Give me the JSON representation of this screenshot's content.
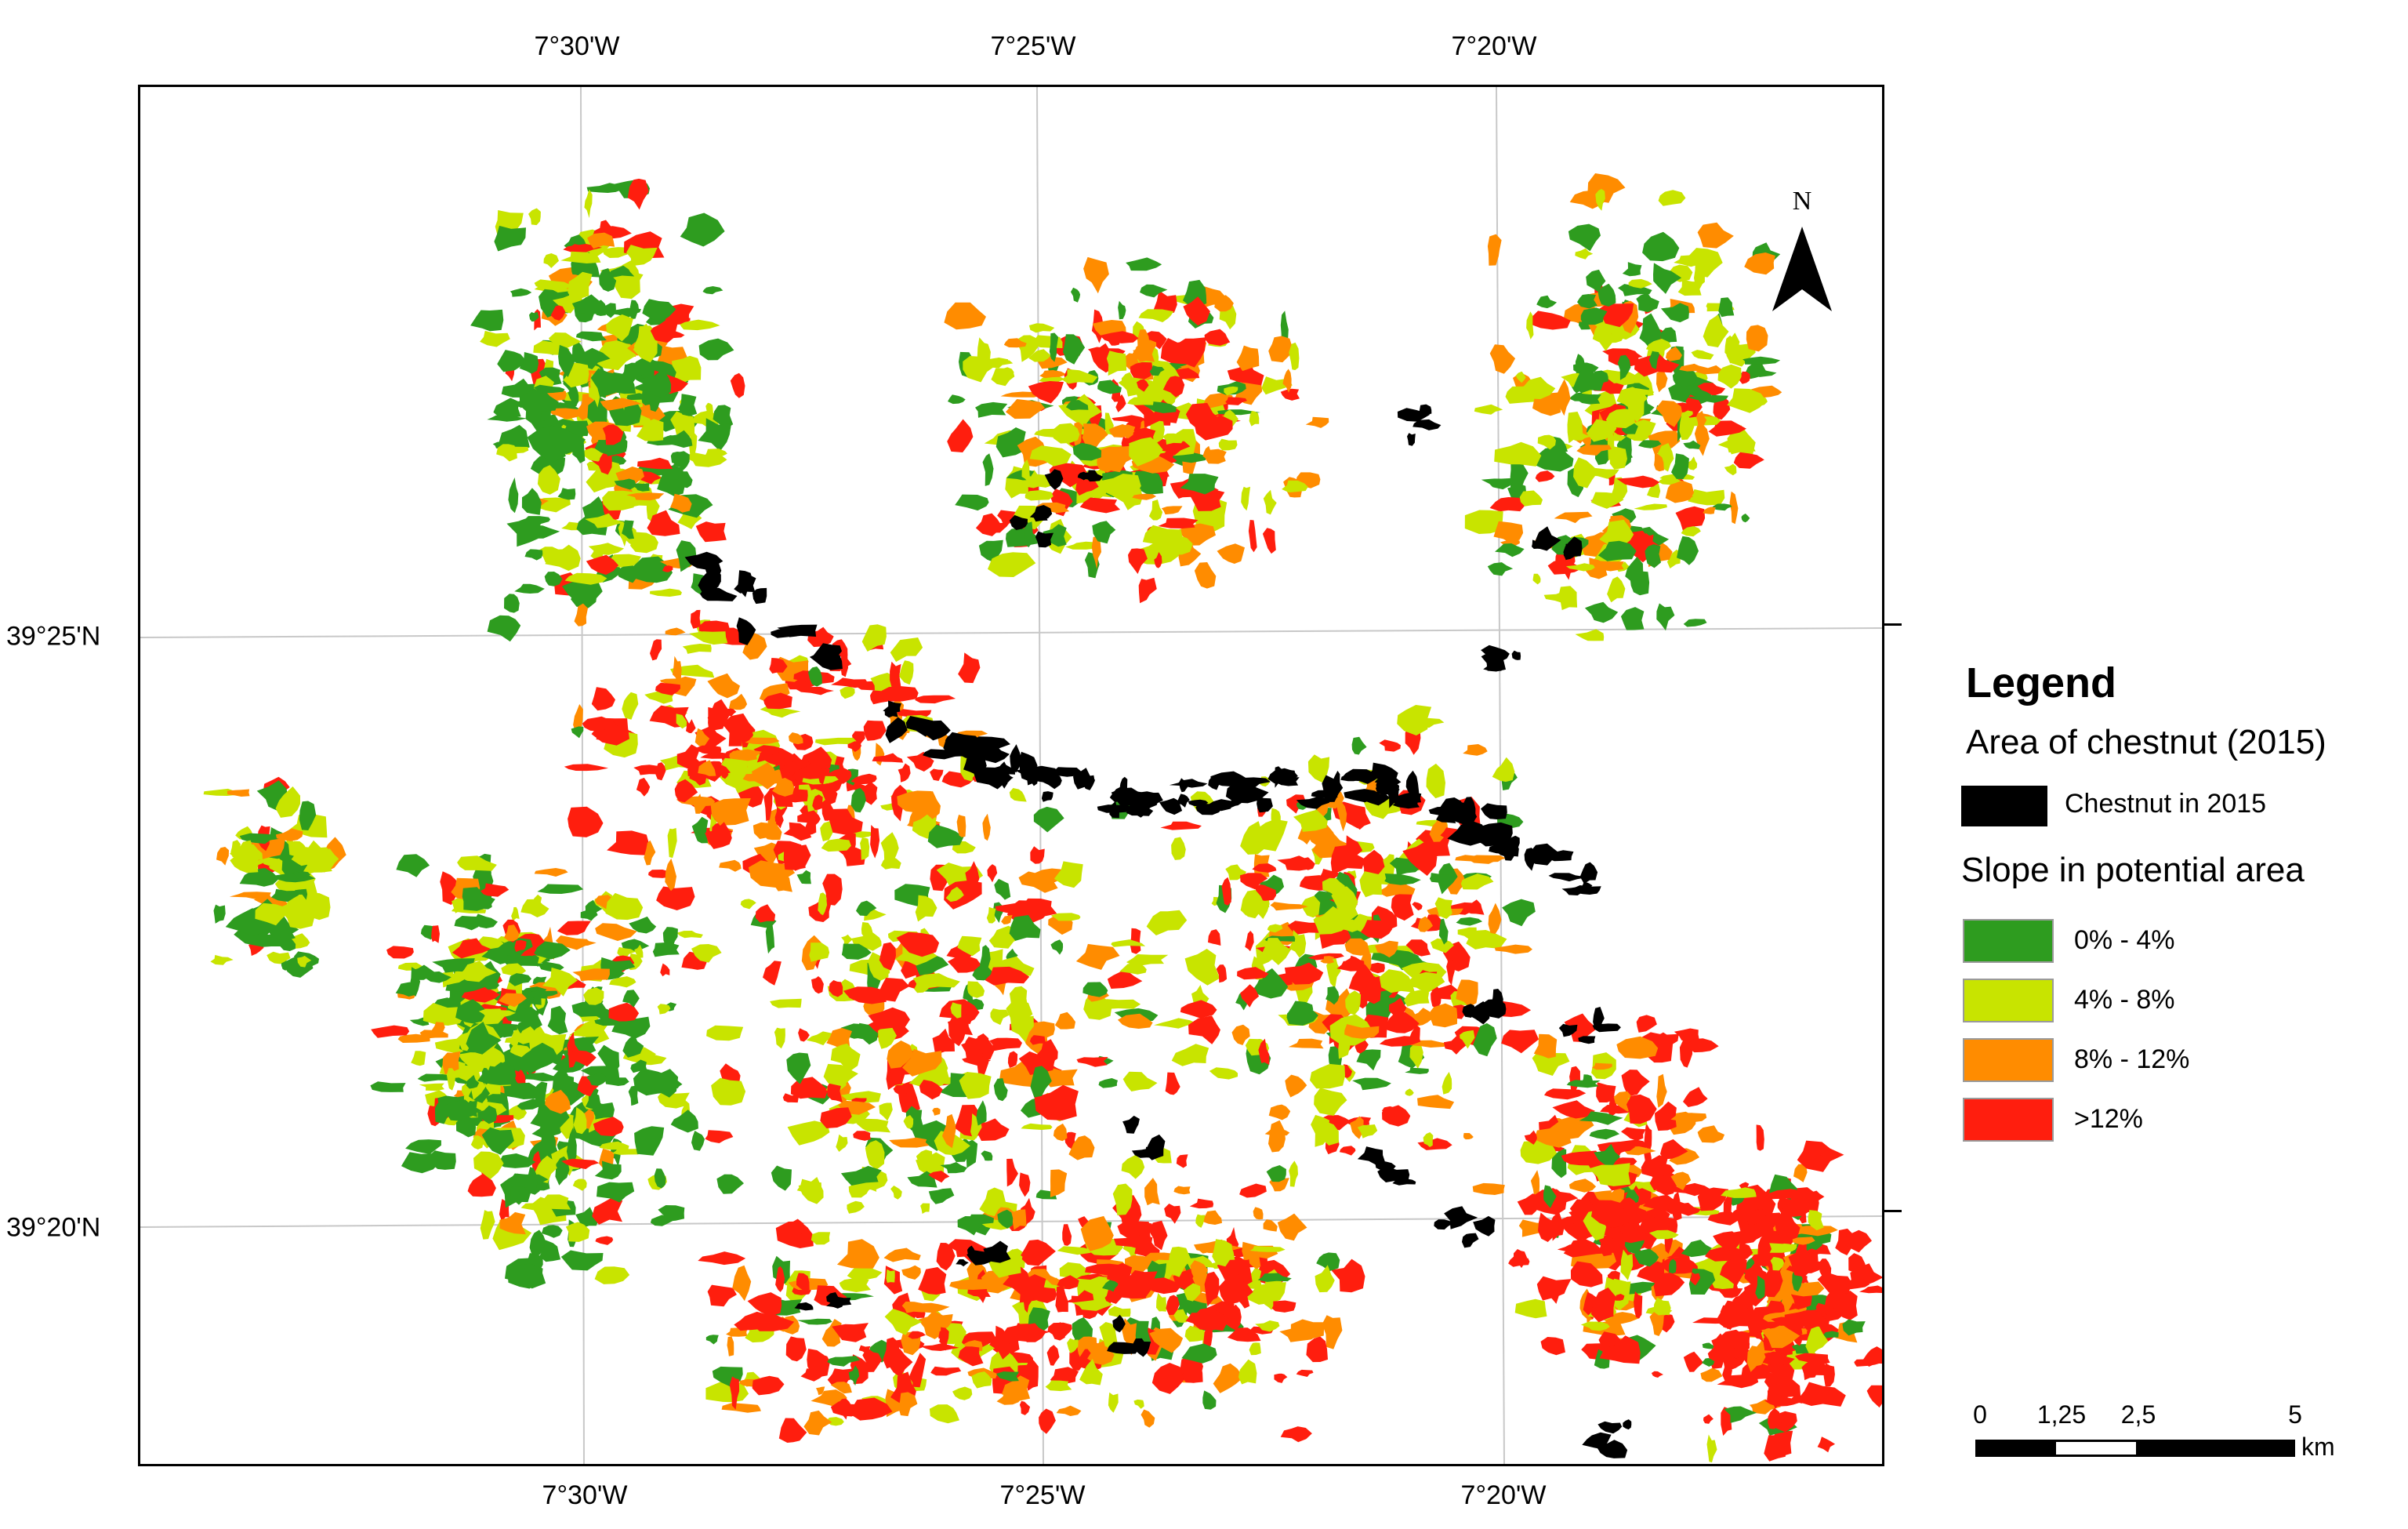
{
  "coordinates": {
    "top": [
      "7°30'W",
      "7°25'W",
      "7°20'W"
    ],
    "bottom": [
      "7°30'W",
      "7°25'W",
      "7°20'W"
    ],
    "left": [
      "39°25'N",
      "39°20'N"
    ]
  },
  "north_arrow": {
    "label": "N",
    "icon": "north-arrow-icon"
  },
  "legend": {
    "title": "Legend",
    "subtitle": "Area of chestnut (2015)",
    "chestnut": {
      "label": "Chestnut in 2015",
      "color": "#000000"
    },
    "slope_title": "Slope in potential area",
    "classes": [
      {
        "label": "0% - 4%",
        "color": "#2e9c1f"
      },
      {
        "label": "4% - 8%",
        "color": "#c8e400"
      },
      {
        "label": "8% - 12%",
        "color": "#ff8c00"
      },
      {
        "label": ">12%",
        "color": "#ff1e0e"
      }
    ]
  },
  "scale_bar": {
    "labels": [
      "0",
      "1,25",
      "2,5",
      "5"
    ],
    "unit": "km"
  }
}
